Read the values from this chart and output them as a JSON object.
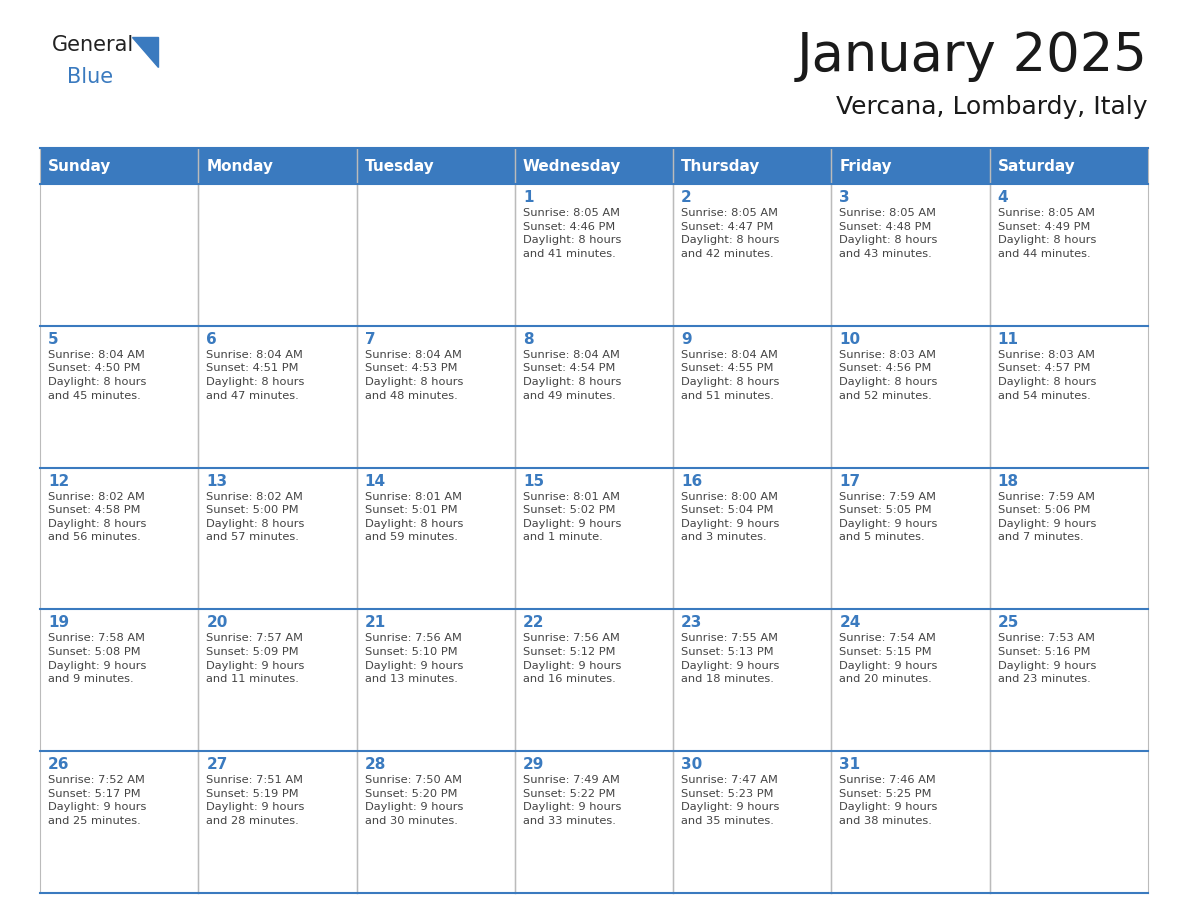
{
  "title": "January 2025",
  "subtitle": "Vercana, Lombardy, Italy",
  "days_of_week": [
    "Sunday",
    "Monday",
    "Tuesday",
    "Wednesday",
    "Thursday",
    "Friday",
    "Saturday"
  ],
  "header_color": "#3a7abf",
  "header_text_color": "#ffffff",
  "cell_bg_color": "#ffffff",
  "cell_border_color": "#aaaaaa",
  "day_number_color": "#3a7abf",
  "text_color": "#444444",
  "logo_general_color": "#222222",
  "logo_blue_color": "#3a7abf",
  "week_separator_color": "#3a7abf",
  "calendar_data": [
    [
      {
        "day": null,
        "text": ""
      },
      {
        "day": null,
        "text": ""
      },
      {
        "day": null,
        "text": ""
      },
      {
        "day": 1,
        "text": "Sunrise: 8:05 AM\nSunset: 4:46 PM\nDaylight: 8 hours\nand 41 minutes."
      },
      {
        "day": 2,
        "text": "Sunrise: 8:05 AM\nSunset: 4:47 PM\nDaylight: 8 hours\nand 42 minutes."
      },
      {
        "day": 3,
        "text": "Sunrise: 8:05 AM\nSunset: 4:48 PM\nDaylight: 8 hours\nand 43 minutes."
      },
      {
        "day": 4,
        "text": "Sunrise: 8:05 AM\nSunset: 4:49 PM\nDaylight: 8 hours\nand 44 minutes."
      }
    ],
    [
      {
        "day": 5,
        "text": "Sunrise: 8:04 AM\nSunset: 4:50 PM\nDaylight: 8 hours\nand 45 minutes."
      },
      {
        "day": 6,
        "text": "Sunrise: 8:04 AM\nSunset: 4:51 PM\nDaylight: 8 hours\nand 47 minutes."
      },
      {
        "day": 7,
        "text": "Sunrise: 8:04 AM\nSunset: 4:53 PM\nDaylight: 8 hours\nand 48 minutes."
      },
      {
        "day": 8,
        "text": "Sunrise: 8:04 AM\nSunset: 4:54 PM\nDaylight: 8 hours\nand 49 minutes."
      },
      {
        "day": 9,
        "text": "Sunrise: 8:04 AM\nSunset: 4:55 PM\nDaylight: 8 hours\nand 51 minutes."
      },
      {
        "day": 10,
        "text": "Sunrise: 8:03 AM\nSunset: 4:56 PM\nDaylight: 8 hours\nand 52 minutes."
      },
      {
        "day": 11,
        "text": "Sunrise: 8:03 AM\nSunset: 4:57 PM\nDaylight: 8 hours\nand 54 minutes."
      }
    ],
    [
      {
        "day": 12,
        "text": "Sunrise: 8:02 AM\nSunset: 4:58 PM\nDaylight: 8 hours\nand 56 minutes."
      },
      {
        "day": 13,
        "text": "Sunrise: 8:02 AM\nSunset: 5:00 PM\nDaylight: 8 hours\nand 57 minutes."
      },
      {
        "day": 14,
        "text": "Sunrise: 8:01 AM\nSunset: 5:01 PM\nDaylight: 8 hours\nand 59 minutes."
      },
      {
        "day": 15,
        "text": "Sunrise: 8:01 AM\nSunset: 5:02 PM\nDaylight: 9 hours\nand 1 minute."
      },
      {
        "day": 16,
        "text": "Sunrise: 8:00 AM\nSunset: 5:04 PM\nDaylight: 9 hours\nand 3 minutes."
      },
      {
        "day": 17,
        "text": "Sunrise: 7:59 AM\nSunset: 5:05 PM\nDaylight: 9 hours\nand 5 minutes."
      },
      {
        "day": 18,
        "text": "Sunrise: 7:59 AM\nSunset: 5:06 PM\nDaylight: 9 hours\nand 7 minutes."
      }
    ],
    [
      {
        "day": 19,
        "text": "Sunrise: 7:58 AM\nSunset: 5:08 PM\nDaylight: 9 hours\nand 9 minutes."
      },
      {
        "day": 20,
        "text": "Sunrise: 7:57 AM\nSunset: 5:09 PM\nDaylight: 9 hours\nand 11 minutes."
      },
      {
        "day": 21,
        "text": "Sunrise: 7:56 AM\nSunset: 5:10 PM\nDaylight: 9 hours\nand 13 minutes."
      },
      {
        "day": 22,
        "text": "Sunrise: 7:56 AM\nSunset: 5:12 PM\nDaylight: 9 hours\nand 16 minutes."
      },
      {
        "day": 23,
        "text": "Sunrise: 7:55 AM\nSunset: 5:13 PM\nDaylight: 9 hours\nand 18 minutes."
      },
      {
        "day": 24,
        "text": "Sunrise: 7:54 AM\nSunset: 5:15 PM\nDaylight: 9 hours\nand 20 minutes."
      },
      {
        "day": 25,
        "text": "Sunrise: 7:53 AM\nSunset: 5:16 PM\nDaylight: 9 hours\nand 23 minutes."
      }
    ],
    [
      {
        "day": 26,
        "text": "Sunrise: 7:52 AM\nSunset: 5:17 PM\nDaylight: 9 hours\nand 25 minutes."
      },
      {
        "day": 27,
        "text": "Sunrise: 7:51 AM\nSunset: 5:19 PM\nDaylight: 9 hours\nand 28 minutes."
      },
      {
        "day": 28,
        "text": "Sunrise: 7:50 AM\nSunset: 5:20 PM\nDaylight: 9 hours\nand 30 minutes."
      },
      {
        "day": 29,
        "text": "Sunrise: 7:49 AM\nSunset: 5:22 PM\nDaylight: 9 hours\nand 33 minutes."
      },
      {
        "day": 30,
        "text": "Sunrise: 7:47 AM\nSunset: 5:23 PM\nDaylight: 9 hours\nand 35 minutes."
      },
      {
        "day": 31,
        "text": "Sunrise: 7:46 AM\nSunset: 5:25 PM\nDaylight: 9 hours\nand 38 minutes."
      },
      {
        "day": null,
        "text": ""
      }
    ]
  ],
  "fig_width": 11.88,
  "fig_height": 9.18,
  "dpi": 100
}
